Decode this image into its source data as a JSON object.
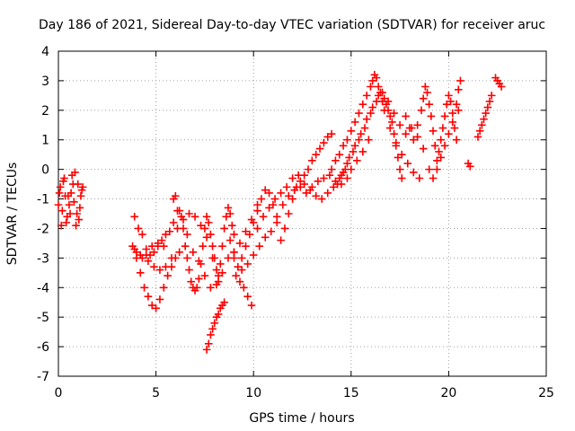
{
  "chart_data": {
    "type": "scatter",
    "title": "Day 186 of 2021, Sidereal Day-to-day VTEC variation (SDTVAR) for receiver aruc",
    "xlabel": "GPS time / hours",
    "ylabel": "SDTVAR / TECUs",
    "xlim": [
      0,
      25
    ],
    "ylim": [
      -7,
      4
    ],
    "xticks": [
      "0",
      "5",
      "10",
      "15",
      "20",
      "25"
    ],
    "yticks": [
      "-7",
      "-6",
      "-5",
      "-4",
      "-3",
      "-2",
      "-1",
      "0",
      "1",
      "2",
      "3",
      "4"
    ],
    "grid": true,
    "marker": "plus",
    "color": "#ff0000",
    "series": [
      {
        "name": "s1",
        "points": [
          [
            0.0,
            -1.2
          ],
          [
            0.1,
            -0.6
          ],
          [
            0.2,
            -1.4
          ],
          [
            0.3,
            -0.3
          ],
          [
            0.4,
            -1.8
          ],
          [
            0.5,
            -0.9
          ],
          [
            0.6,
            -1.5
          ],
          [
            0.7,
            -0.2
          ],
          [
            0.8,
            -1.1
          ],
          [
            0.9,
            -1.9
          ],
          [
            1.0,
            -0.5
          ],
          [
            1.1,
            -1.3
          ],
          [
            1.2,
            -0.7
          ],
          [
            0.15,
            -1.9
          ],
          [
            0.35,
            -0.9
          ],
          [
            0.55,
            -1.2
          ],
          [
            0.75,
            -0.5
          ],
          [
            0.95,
            -1.5
          ],
          [
            1.15,
            -0.9
          ],
          [
            0.05,
            -0.8
          ],
          [
            0.25,
            -0.4
          ],
          [
            0.45,
            -1.6
          ],
          [
            0.65,
            -0.8
          ],
          [
            0.85,
            -0.1
          ],
          [
            1.05,
            -1.7
          ],
          [
            1.25,
            -0.6
          ]
        ]
      },
      {
        "name": "s2",
        "points": [
          [
            3.8,
            -2.6
          ],
          [
            3.9,
            -1.6
          ],
          [
            4.0,
            -3.0
          ],
          [
            4.1,
            -2.0
          ],
          [
            4.2,
            -3.5
          ],
          [
            4.3,
            -2.2
          ],
          [
            4.4,
            -4.0
          ],
          [
            4.5,
            -2.7
          ],
          [
            4.6,
            -4.3
          ],
          [
            4.7,
            -2.9
          ],
          [
            4.8,
            -4.6
          ],
          [
            4.9,
            -2.8
          ],
          [
            5.0,
            -4.7
          ],
          [
            5.1,
            -2.6
          ],
          [
            5.2,
            -4.4
          ],
          [
            5.3,
            -2.4
          ],
          [
            5.4,
            -4.0
          ],
          [
            5.5,
            -2.2
          ],
          [
            5.6,
            -3.6
          ],
          [
            5.7,
            -2.1
          ],
          [
            5.8,
            -3.3
          ],
          [
            5.9,
            -1.8
          ],
          [
            6.0,
            -3.0
          ],
          [
            6.1,
            -1.4
          ],
          [
            6.2,
            -2.8
          ],
          [
            4.0,
            -2.8
          ],
          [
            4.3,
            -3.0
          ],
          [
            4.6,
            -3.1
          ],
          [
            4.9,
            -3.3
          ],
          [
            5.2,
            -3.4
          ],
          [
            5.5,
            -3.3
          ],
          [
            5.8,
            -3.0
          ],
          [
            3.9,
            -2.7
          ],
          [
            4.2,
            -2.9
          ],
          [
            4.5,
            -2.9
          ],
          [
            4.8,
            -2.6
          ],
          [
            5.1,
            -2.5
          ],
          [
            5.4,
            -2.6
          ]
        ]
      },
      {
        "name": "s3",
        "points": [
          [
            5.9,
            -1.0
          ],
          [
            6.0,
            -0.9
          ],
          [
            6.2,
            -1.4
          ],
          [
            6.4,
            -2.0
          ],
          [
            6.5,
            -2.6
          ],
          [
            6.6,
            -3.0
          ],
          [
            6.7,
            -3.4
          ],
          [
            6.8,
            -3.8
          ],
          [
            6.9,
            -4.0
          ],
          [
            7.0,
            -4.1
          ],
          [
            7.1,
            -4.0
          ],
          [
            7.2,
            -3.7
          ],
          [
            7.3,
            -3.2
          ],
          [
            7.4,
            -2.6
          ],
          [
            7.5,
            -2.0
          ],
          [
            7.6,
            -1.6
          ],
          [
            7.7,
            -1.8
          ],
          [
            7.8,
            -2.2
          ],
          [
            7.9,
            -2.6
          ],
          [
            8.0,
            -3.0
          ],
          [
            8.1,
            -3.4
          ],
          [
            8.2,
            -3.6
          ],
          [
            8.3,
            -3.2
          ],
          [
            8.4,
            -2.6
          ],
          [
            8.5,
            -2.0
          ],
          [
            8.6,
            -1.6
          ],
          [
            8.7,
            -1.3
          ],
          [
            8.8,
            -1.5
          ],
          [
            8.9,
            -1.9
          ],
          [
            9.0,
            -2.2
          ],
          [
            6.3,
            -1.6
          ],
          [
            6.6,
            -2.2
          ],
          [
            6.9,
            -2.8
          ],
          [
            7.2,
            -3.1
          ],
          [
            7.5,
            -3.6
          ],
          [
            7.8,
            -4.0
          ],
          [
            8.1,
            -3.9
          ],
          [
            8.4,
            -3.5
          ],
          [
            8.7,
            -3.0
          ],
          [
            9.0,
            -2.8
          ],
          [
            6.1,
            -2.0
          ],
          [
            6.4,
            -1.7
          ],
          [
            6.7,
            -1.5
          ],
          [
            7.0,
            -1.6
          ],
          [
            7.3,
            -1.9
          ],
          [
            7.6,
            -2.3
          ],
          [
            7.9,
            -3.0
          ],
          [
            8.2,
            -3.8
          ]
        ]
      },
      {
        "name": "s4",
        "points": [
          [
            7.6,
            -6.1
          ],
          [
            7.7,
            -5.9
          ],
          [
            7.8,
            -5.6
          ],
          [
            7.9,
            -5.4
          ],
          [
            8.0,
            -5.2
          ],
          [
            8.1,
            -5.0
          ],
          [
            8.2,
            -4.9
          ],
          [
            8.3,
            -4.7
          ],
          [
            8.4,
            -4.6
          ],
          [
            8.5,
            -4.5
          ]
        ]
      },
      {
        "name": "s5",
        "points": [
          [
            9.0,
            -3.0
          ],
          [
            9.2,
            -3.3
          ],
          [
            9.4,
            -3.0
          ],
          [
            9.6,
            -2.6
          ],
          [
            9.8,
            -2.2
          ],
          [
            10.0,
            -1.8
          ],
          [
            10.2,
            -1.4
          ],
          [
            10.4,
            -1.0
          ],
          [
            10.6,
            -0.7
          ],
          [
            10.8,
            -0.8
          ],
          [
            11.0,
            -1.2
          ],
          [
            11.2,
            -1.8
          ],
          [
            11.4,
            -2.4
          ],
          [
            11.6,
            -2.0
          ],
          [
            11.8,
            -1.5
          ],
          [
            12.0,
            -1.0
          ],
          [
            12.2,
            -0.6
          ],
          [
            12.4,
            -0.4
          ],
          [
            12.6,
            -0.2
          ],
          [
            12.8,
            0.0
          ],
          [
            13.0,
            0.3
          ],
          [
            13.2,
            0.5
          ],
          [
            13.4,
            0.7
          ],
          [
            13.6,
            0.9
          ],
          [
            13.8,
            1.1
          ],
          [
            14.0,
            1.2
          ],
          [
            9.1,
            -3.6
          ],
          [
            9.3,
            -3.8
          ],
          [
            9.5,
            -4.0
          ],
          [
            9.7,
            -4.3
          ],
          [
            9.9,
            -4.6
          ],
          [
            9.4,
            -3.4
          ],
          [
            9.7,
            -3.2
          ],
          [
            10.0,
            -2.9
          ],
          [
            10.3,
            -2.6
          ],
          [
            10.6,
            -2.3
          ],
          [
            10.9,
            -2.1
          ],
          [
            11.2,
            -1.6
          ],
          [
            11.5,
            -1.2
          ],
          [
            11.8,
            -0.9
          ],
          [
            12.1,
            -0.7
          ],
          [
            12.4,
            -0.6
          ],
          [
            12.7,
            -0.8
          ],
          [
            13.0,
            -0.6
          ],
          [
            13.3,
            -0.4
          ],
          [
            13.6,
            -0.3
          ],
          [
            13.9,
            -0.2
          ],
          [
            14.2,
            -0.4
          ],
          [
            14.5,
            -0.5
          ],
          [
            14.8,
            -0.3
          ],
          [
            10.2,
            -2.0
          ],
          [
            10.5,
            -1.6
          ],
          [
            10.8,
            -1.3
          ],
          [
            11.1,
            -1.0
          ],
          [
            11.4,
            -0.8
          ],
          [
            11.7,
            -0.6
          ],
          [
            12.0,
            -0.3
          ],
          [
            12.3,
            -0.2
          ],
          [
            12.6,
            -0.5
          ],
          [
            12.9,
            -0.7
          ],
          [
            13.2,
            -0.9
          ],
          [
            13.5,
            -1.0
          ],
          [
            13.8,
            -0.8
          ],
          [
            14.1,
            -0.6
          ],
          [
            14.4,
            -0.3
          ],
          [
            14.7,
            0.0
          ],
          [
            8.8,
            -2.4
          ],
          [
            9.0,
            -2.8
          ],
          [
            9.3,
            -2.5
          ],
          [
            9.6,
            -2.1
          ],
          [
            9.9,
            -1.7
          ],
          [
            10.2,
            -1.2
          ]
        ]
      },
      {
        "name": "s6",
        "points": [
          [
            14.0,
            0.0
          ],
          [
            14.2,
            0.3
          ],
          [
            14.4,
            0.5
          ],
          [
            14.6,
            0.8
          ],
          [
            14.8,
            1.0
          ],
          [
            15.0,
            1.3
          ],
          [
            15.2,
            1.6
          ],
          [
            15.4,
            1.9
          ],
          [
            15.6,
            2.2
          ],
          [
            15.8,
            2.5
          ],
          [
            16.0,
            2.8
          ],
          [
            16.1,
            3.0
          ],
          [
            16.2,
            3.2
          ],
          [
            16.3,
            3.1
          ],
          [
            16.4,
            2.8
          ],
          [
            16.5,
            2.6
          ],
          [
            16.6,
            2.3
          ],
          [
            16.7,
            2.4
          ],
          [
            16.8,
            2.2
          ],
          [
            16.9,
            2.0
          ],
          [
            17.0,
            1.8
          ],
          [
            17.1,
            1.6
          ],
          [
            17.2,
            1.2
          ],
          [
            17.3,
            0.8
          ],
          [
            17.4,
            0.4
          ],
          [
            17.5,
            0.0
          ],
          [
            17.6,
            -0.3
          ],
          [
            14.5,
            -0.2
          ],
          [
            14.8,
            0.2
          ],
          [
            15.1,
            0.6
          ],
          [
            15.4,
            1.0
          ],
          [
            15.7,
            1.4
          ],
          [
            16.0,
            1.9
          ],
          [
            16.3,
            2.3
          ],
          [
            16.6,
            2.6
          ],
          [
            16.9,
            2.3
          ],
          [
            17.2,
            1.9
          ],
          [
            17.5,
            1.5
          ],
          [
            17.8,
            1.2
          ],
          [
            18.1,
            1.4
          ],
          [
            18.4,
            1.1
          ],
          [
            18.7,
            0.7
          ],
          [
            14.3,
            -0.5
          ],
          [
            14.6,
            -0.1
          ],
          [
            14.9,
            0.4
          ],
          [
            15.2,
            0.8
          ],
          [
            15.5,
            1.2
          ],
          [
            15.8,
            1.7
          ],
          [
            16.1,
            2.1
          ],
          [
            16.4,
            2.5
          ],
          [
            16.7,
            2.0
          ],
          [
            17.0,
            1.4
          ],
          [
            17.3,
            0.9
          ],
          [
            17.6,
            0.5
          ],
          [
            17.9,
            0.2
          ],
          [
            18.2,
            -0.1
          ],
          [
            18.5,
            -0.3
          ],
          [
            15.0,
            0.0
          ],
          [
            15.3,
            0.3
          ],
          [
            15.6,
            0.6
          ],
          [
            15.9,
            1.0
          ]
        ]
      },
      {
        "name": "s7",
        "points": [
          [
            17.8,
            1.8
          ],
          [
            18.0,
            1.4
          ],
          [
            18.2,
            1.0
          ],
          [
            18.4,
            1.5
          ],
          [
            18.6,
            2.0
          ],
          [
            18.7,
            2.4
          ],
          [
            18.8,
            2.8
          ],
          [
            18.9,
            2.6
          ],
          [
            19.0,
            2.2
          ],
          [
            19.1,
            1.8
          ],
          [
            19.2,
            1.3
          ],
          [
            19.3,
            0.8
          ],
          [
            19.4,
            0.3
          ],
          [
            19.5,
            0.6
          ],
          [
            19.6,
            1.0
          ],
          [
            19.7,
            1.4
          ],
          [
            19.8,
            1.8
          ],
          [
            19.9,
            2.2
          ],
          [
            20.0,
            2.5
          ],
          [
            20.1,
            2.3
          ],
          [
            20.2,
            1.9
          ],
          [
            20.3,
            1.4
          ],
          [
            20.4,
            1.0
          ],
          [
            20.5,
            2.0
          ],
          [
            20.6,
            3.0
          ],
          [
            19.0,
            0.0
          ],
          [
            19.2,
            -0.3
          ],
          [
            19.4,
            0.0
          ],
          [
            19.6,
            0.4
          ],
          [
            19.8,
            0.8
          ],
          [
            20.0,
            1.2
          ],
          [
            20.2,
            1.6
          ],
          [
            20.4,
            2.2
          ],
          [
            20.5,
            2.7
          ]
        ]
      },
      {
        "name": "s8",
        "points": [
          [
            21.0,
            0.2
          ],
          [
            21.1,
            0.1
          ]
        ]
      },
      {
        "name": "s9",
        "points": [
          [
            21.5,
            1.1
          ],
          [
            21.6,
            1.3
          ],
          [
            21.7,
            1.5
          ],
          [
            21.8,
            1.7
          ],
          [
            21.9,
            1.9
          ],
          [
            22.0,
            2.1
          ],
          [
            22.1,
            2.3
          ],
          [
            22.2,
            2.5
          ],
          [
            22.4,
            3.1
          ],
          [
            22.5,
            3.0
          ],
          [
            22.6,
            2.9
          ],
          [
            22.7,
            2.8
          ]
        ]
      }
    ]
  }
}
